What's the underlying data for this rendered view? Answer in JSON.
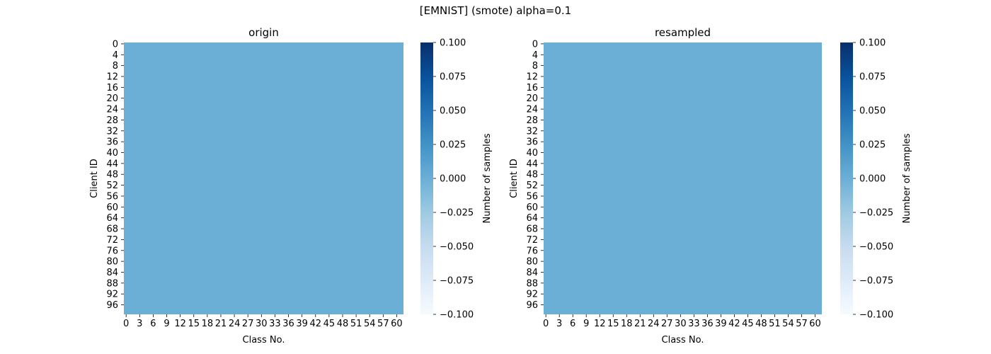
{
  "figure_title": "[EMNIST] (smote) alpha=0.1",
  "colors": {
    "cell_fill": "#6baed6",
    "cmap_stops": [
      "#f7fbff",
      "#deebf7",
      "#c6dbef",
      "#9ecae1",
      "#6baed6",
      "#4292c6",
      "#2171b5",
      "#08519c",
      "#08306b"
    ]
  },
  "chart_data": [
    {
      "type": "heatmap",
      "title": "origin",
      "xlabel": "Class No.",
      "ylabel": "Client ID",
      "colorbar_label": "Number of samples",
      "x_ticks": [
        "0",
        "3",
        "6",
        "9",
        "12",
        "15",
        "18",
        "21",
        "24",
        "27",
        "30",
        "33",
        "36",
        "39",
        "42",
        "45",
        "48",
        "51",
        "54",
        "57",
        "60"
      ],
      "y_ticks": [
        "0",
        "4",
        "8",
        "12",
        "16",
        "20",
        "24",
        "28",
        "32",
        "36",
        "40",
        "44",
        "48",
        "52",
        "56",
        "60",
        "64",
        "68",
        "72",
        "76",
        "80",
        "84",
        "88",
        "92",
        "96"
      ],
      "n_classes": 62,
      "n_clients": 100,
      "uniform_value": 0.0,
      "colorbar_ticks": [
        "0.100",
        "0.075",
        "0.050",
        "0.025",
        "0.000",
        "−0.025",
        "−0.050",
        "−0.075",
        "−0.100"
      ],
      "vmin": -0.1,
      "vmax": 0.1
    },
    {
      "type": "heatmap",
      "title": "resampled",
      "xlabel": "Class No.",
      "ylabel": "Client ID",
      "colorbar_label": "Number of samples",
      "x_ticks": [
        "0",
        "3",
        "6",
        "9",
        "12",
        "15",
        "18",
        "21",
        "24",
        "27",
        "30",
        "33",
        "36",
        "39",
        "42",
        "45",
        "48",
        "51",
        "54",
        "57",
        "60"
      ],
      "y_ticks": [
        "0",
        "4",
        "8",
        "12",
        "16",
        "20",
        "24",
        "28",
        "32",
        "36",
        "40",
        "44",
        "48",
        "52",
        "56",
        "60",
        "64",
        "68",
        "72",
        "76",
        "80",
        "84",
        "88",
        "92",
        "96"
      ],
      "n_classes": 62,
      "n_clients": 100,
      "uniform_value": 0.0,
      "colorbar_ticks": [
        "0.100",
        "0.075",
        "0.050",
        "0.025",
        "0.000",
        "−0.025",
        "−0.050",
        "−0.075",
        "−0.100"
      ],
      "vmin": -0.1,
      "vmax": 0.1
    }
  ]
}
